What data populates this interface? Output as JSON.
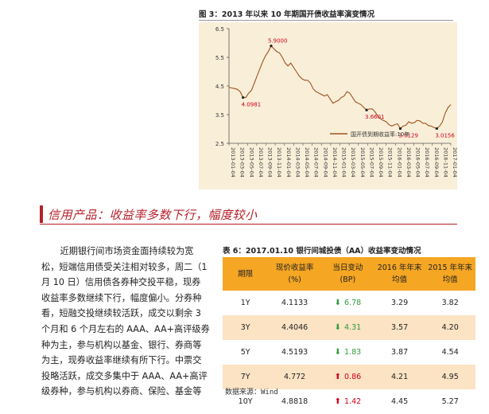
{
  "figure": {
    "title": "图 3：2013 年以来 10 年期国开债收益率演变情况"
  },
  "chart_data": {
    "type": "line",
    "title": "图 3：2013 年以来 10 年期国开债收益率演变情况",
    "xlabel": "",
    "ylabel": "",
    "ylim": [
      2.5,
      6.5
    ],
    "yticks": [
      "2.5",
      "3.5",
      "4.5",
      "5.5",
      "6.5"
    ],
    "xticks": [
      "2013-01-04",
      "2013-03-04",
      "2013-05-04",
      "2013-07-04",
      "2013-09-04",
      "2013-11-04",
      "2014-01-04",
      "2014-03-04",
      "2014-05-04",
      "2014-07-04",
      "2014-09-04",
      "2014-11-04",
      "2015-01-04",
      "2015-03-04",
      "2015-05-04",
      "2015-07-04",
      "2015-09-04",
      "2015-11-04",
      "2016-01-04",
      "2016-03-04",
      "2016-05-04",
      "2016-07-04",
      "2016-09-04",
      "2016-11-04",
      "2017-01-04"
    ],
    "legend": {
      "label": "国开债到期收益率:10年",
      "placement": "bottom-right"
    },
    "grid": false,
    "color": "#a0521e",
    "series": [
      {
        "name": "国开债到期收益率:10年",
        "values": [
          4.45,
          4.43,
          4.41,
          4.38,
          4.3,
          4.1,
          4.1,
          4.25,
          4.35,
          4.6,
          4.85,
          5.1,
          5.35,
          5.55,
          5.7,
          5.9,
          5.8,
          5.7,
          5.65,
          5.5,
          5.3,
          5.2,
          5.3,
          5.15,
          5.0,
          4.85,
          4.75,
          4.7,
          4.7,
          4.6,
          4.4,
          4.3,
          4.25,
          4.2,
          4.15,
          4.2,
          4.05,
          3.9,
          3.95,
          4.0,
          4.1,
          4.15,
          4.3,
          4.25,
          4.1,
          3.95,
          3.9,
          3.85,
          3.75,
          3.66,
          3.7,
          3.7,
          3.6,
          3.45,
          3.35,
          3.3,
          3.25,
          3.15,
          3.1,
          3.15,
          3.18,
          3.02,
          3.1,
          3.13,
          3.25,
          3.2,
          3.22,
          3.3,
          3.28,
          3.2,
          3.2,
          3.12,
          3.1,
          3.05,
          3.02,
          3.1,
          3.25,
          3.55,
          3.75,
          3.85
        ]
      }
    ],
    "annotations": [
      {
        "label": "5.9000",
        "index": 15,
        "value": 5.9
      },
      {
        "label": "4.0981",
        "index": 5,
        "value": 4.0981
      },
      {
        "label": "3.6601",
        "index": 49,
        "value": 3.6601
      },
      {
        "label": "3.0129",
        "index": 61,
        "value": 3.0129
      },
      {
        "label": "3.0156",
        "index": 74,
        "value": 3.0156
      }
    ]
  },
  "section": {
    "title": "信用产品：收益率多数下行，幅度较小"
  },
  "body": {
    "lines": [
      "近期银行间市场资金面持续较为宽",
      "松，短端信用债受关注相对较多，周二（1",
      "月 10 日）信用债各券种交投平稳，现券",
      "收益率多数继续下行，幅度偏小。分券种",
      "看，短融交投继续较活跃，成交以剩余 3",
      "个月和 6 个月左右的 AAA、AA+高评级券",
      "种为主，参与机构以基金、银行、券商等",
      "为主，现券收益率继续有所下行。中票交",
      "投略活跃，成交多集中于 AAA、AA+高评",
      "级券种，参与机构以券商、保险、基金等"
    ]
  },
  "table": {
    "title": "表 6：2017.01.10 银行间城投债（AA）收益率变动情况",
    "headers": [
      [
        "期限",
        ""
      ],
      [
        "现价收益率",
        "(%)"
      ],
      [
        "当日变动",
        "(BP)"
      ],
      [
        "2016 年年末",
        "均值"
      ],
      [
        "2015 年年末",
        "均值"
      ]
    ],
    "rows": [
      {
        "term": "1Y",
        "yield": "4.1133",
        "direction": "down",
        "change": "6.78",
        "avg2016": "3.29",
        "avg2015": "3.82"
      },
      {
        "term": "3Y",
        "yield": "4.4046",
        "direction": "down",
        "change": "4.31",
        "avg2016": "3.57",
        "avg2015": "4.20"
      },
      {
        "term": "5Y",
        "yield": "4.5193",
        "direction": "down",
        "change": "1.83",
        "avg2016": "3.87",
        "avg2015": "4.54"
      },
      {
        "term": "7Y",
        "yield": "4.772",
        "direction": "up",
        "change": "0.86",
        "avg2016": "4.21",
        "avg2015": "4.95"
      },
      {
        "term": "10Y",
        "yield": "4.8818",
        "direction": "up",
        "change": "1.42",
        "avg2016": "4.45",
        "avg2015": "5.27"
      }
    ],
    "colors": {
      "header": "#f5a623",
      "alt_row": "#fbe3c4",
      "up": "#d0021b",
      "down": "#2e9b3a"
    },
    "source": "数据来源：Wind"
  }
}
